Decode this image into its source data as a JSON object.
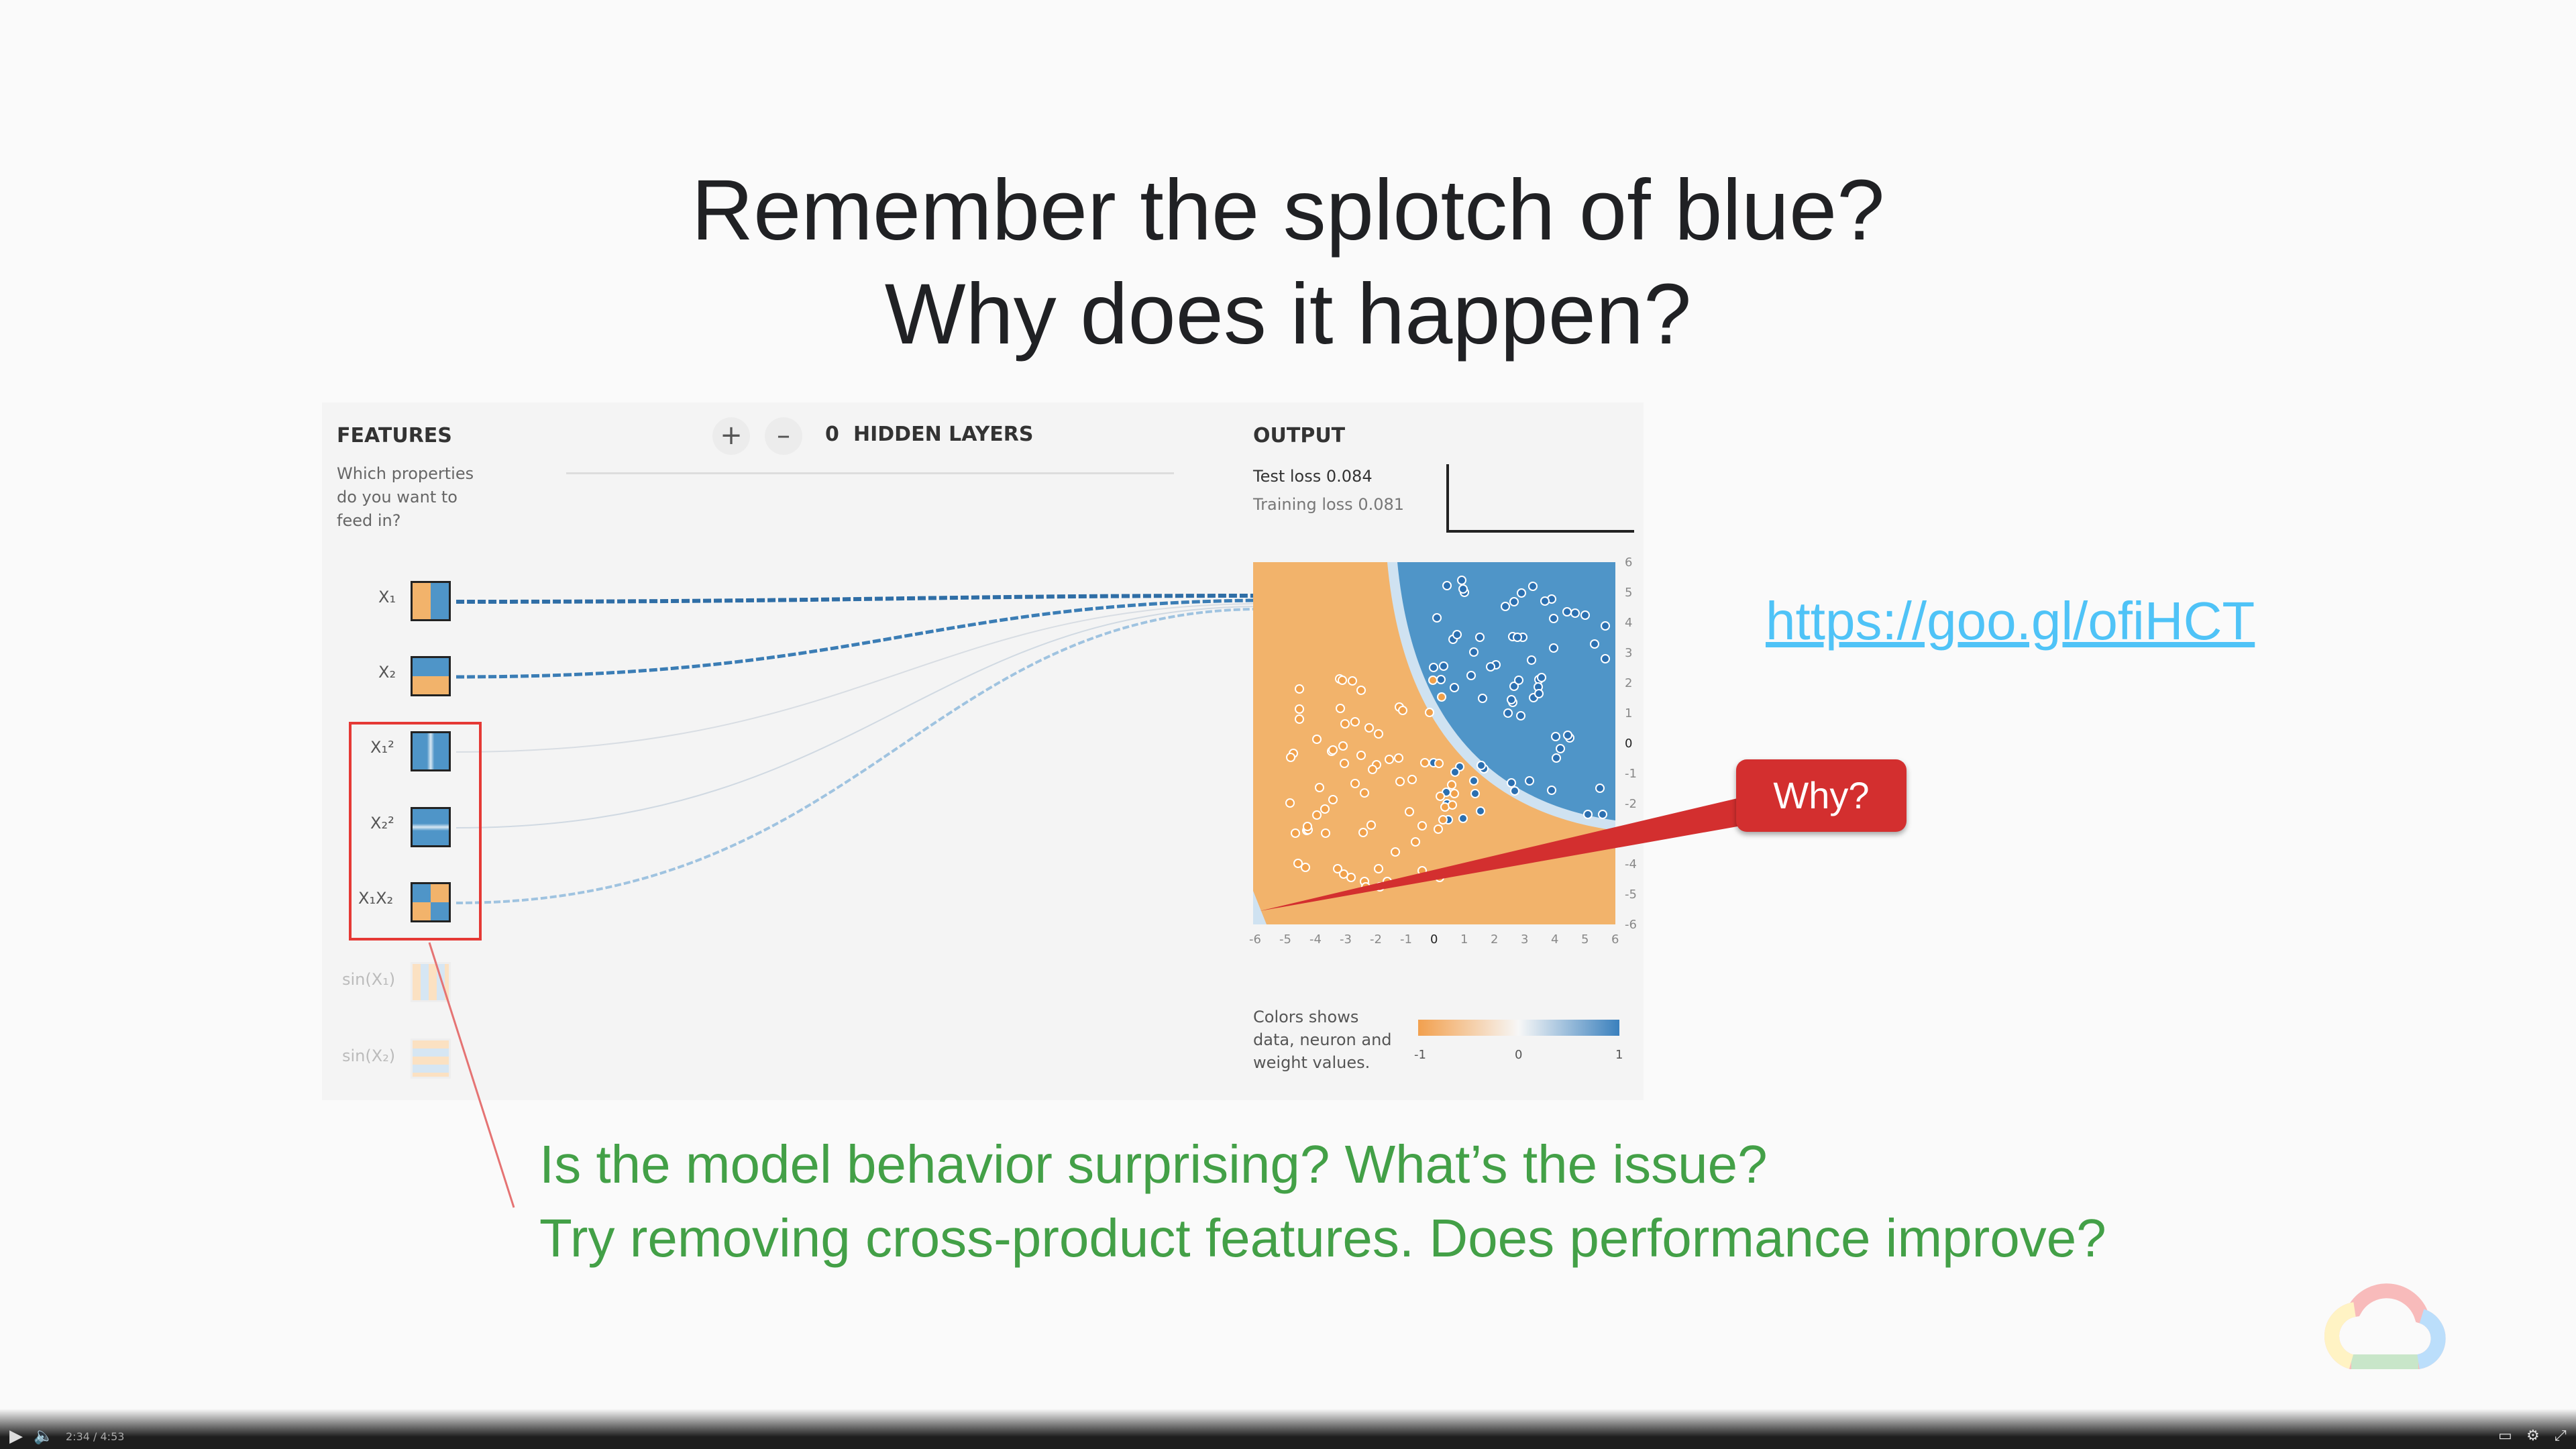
{
  "slide": {
    "title_line1": "Remember the splotch of blue?",
    "title_line2": "Why does it happen?",
    "link": "https://goo.gl/ofiHCT",
    "callout": "Why?",
    "question1": "Is the model behavior surprising? What’s the issue?",
    "question2": "Try removing cross-product features. Does performance improve?"
  },
  "playground": {
    "features_heading": "FEATURES",
    "features_sub": [
      "Which properties",
      "do you want to",
      "feed in?"
    ],
    "hidden_layers_count": "0",
    "hidden_layers_label": "HIDDEN LAYERS",
    "add_layer": "+",
    "remove_layer": "–",
    "output_heading": "OUTPUT",
    "test_loss": "Test loss 0.084",
    "training_loss": "Training loss 0.081",
    "features": [
      {
        "label": "X₁",
        "active": true
      },
      {
        "label": "X₂",
        "active": true
      },
      {
        "label": "X₁²",
        "active": true
      },
      {
        "label": "X₂²",
        "active": true
      },
      {
        "label": "X₁X₂",
        "active": true
      },
      {
        "label": "sin(X₁)",
        "active": false
      },
      {
        "label": "sin(X₂)",
        "active": false
      }
    ],
    "x_ticks": [
      "-6",
      "-5",
      "-4",
      "-3",
      "-2",
      "-1",
      "0",
      "1",
      "2",
      "3",
      "4",
      "5",
      "6"
    ],
    "y_ticks": [
      "6",
      "5",
      "4",
      "3",
      "2",
      "1",
      "0",
      "-1",
      "-2",
      "-3",
      "-4",
      "-5",
      "-6"
    ],
    "legend_text": [
      "Colors shows",
      "data, neuron and",
      "weight values."
    ],
    "legend_ticks": [
      "-1",
      "0",
      "1"
    ],
    "colors": {
      "orange": "#f2b36b",
      "blue": "#4f95c8",
      "highlight": "#e53935"
    }
  },
  "player": {
    "time": "2:34 / 4:53"
  }
}
